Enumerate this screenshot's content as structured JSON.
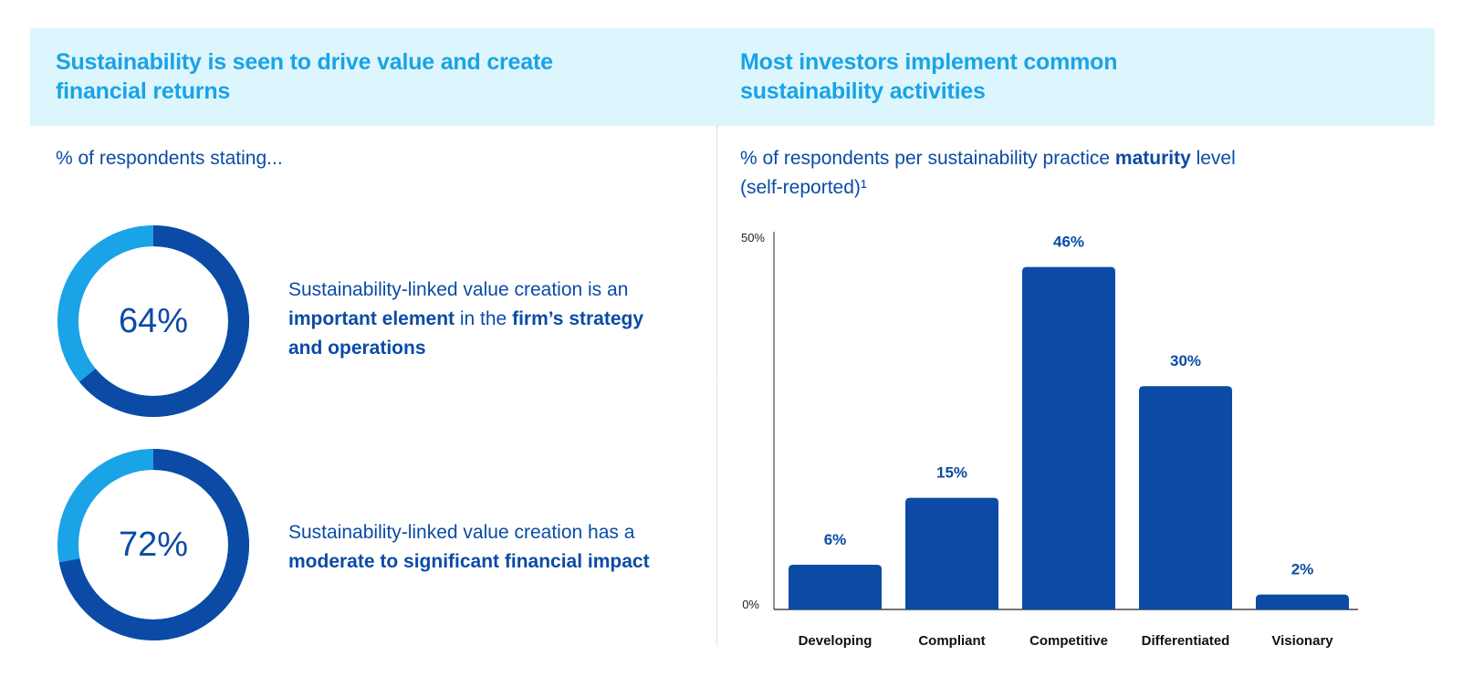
{
  "left_panel": {
    "title_lines": [
      "Sustainability is seen to drive value and create",
      "financial returns"
    ],
    "subtitle": "% of respondents stating...",
    "stats": [
      {
        "value_label": "64%",
        "fraction": 0.64,
        "line1": "Sustainability-linked value creation is an",
        "line2_bold_a": "important element",
        "line2_mid": " in the ",
        "line2_bold_b": "firm’s strategy",
        "line3_bold": "and operations"
      },
      {
        "value_label": "72%",
        "fraction": 0.72,
        "line1": "Sustainability-linked value creation has a",
        "line2_bold": "moderate to significant financial impact"
      }
    ]
  },
  "right_panel": {
    "title_lines": [
      "Most investors implement common",
      "sustainability activities"
    ],
    "subtitle_a": "% of respondents per sustainability practice ",
    "subtitle_bold": "maturity",
    "subtitle_b": " level",
    "subtitle_line2": "(self-reported)¹"
  },
  "colors": {
    "dark_blue": "#0b4ba5",
    "light_blue": "#1aa3e6",
    "header_band": "#ddf6fd"
  },
  "chart_data": {
    "type": "bar",
    "title": "% of respondents per sustainability practice maturity level (self-reported)¹",
    "categories": [
      "Developing",
      "Compliant",
      "Competitive",
      "Differentiated",
      "Visionary"
    ],
    "values": [
      6,
      15,
      46,
      30,
      2
    ],
    "value_labels": [
      "6%",
      "15%",
      "46%",
      "30%",
      "2%"
    ],
    "ylim": [
      0,
      50
    ],
    "y_tick_labels": [
      "0%",
      "50%"
    ],
    "xlabel": "",
    "ylabel": "",
    "grid": false
  }
}
